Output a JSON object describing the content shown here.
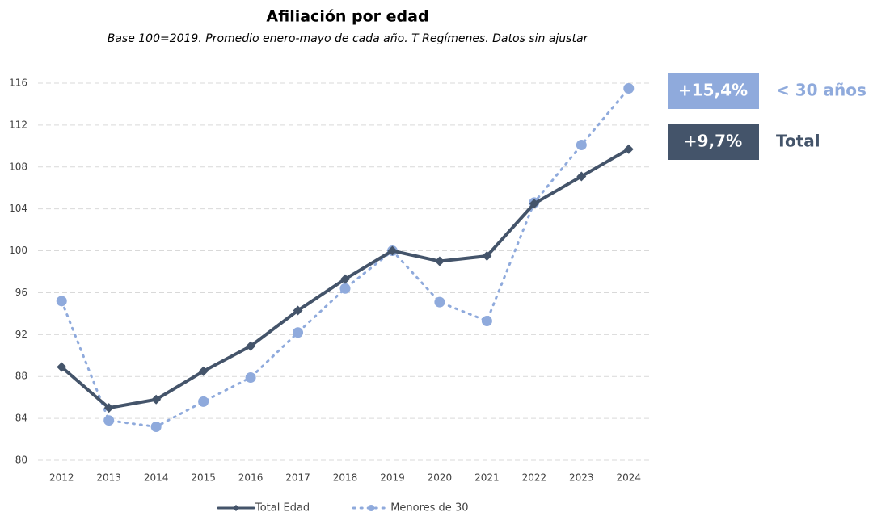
{
  "chart_data": {
    "type": "line",
    "title": "Afiliación por edad",
    "subtitle": "Base 100=2019. Promedio enero-mayo de cada año. T Regímenes. Datos sin ajustar",
    "categories": [
      "2012",
      "2013",
      "2014",
      "2015",
      "2016",
      "2017",
      "2018",
      "2019",
      "2020",
      "2021",
      "2022",
      "2023",
      "2024"
    ],
    "series": [
      {
        "name": "Total Edad",
        "color": "#44546a",
        "style": "solid",
        "marker": "diamond",
        "values": [
          88.9,
          85.0,
          85.8,
          88.5,
          90.9,
          94.3,
          97.3,
          100.0,
          99.0,
          99.5,
          104.5,
          107.1,
          109.7
        ]
      },
      {
        "name": "Menores de 30",
        "color": "#8faadc",
        "style": "dotted",
        "marker": "circle",
        "values": [
          95.2,
          83.8,
          83.2,
          85.6,
          87.9,
          92.2,
          96.4,
          100.0,
          95.1,
          93.3,
          104.6,
          110.1,
          115.5
        ]
      }
    ],
    "ylim": [
      80,
      116
    ],
    "yticks": [
      80,
      84,
      88,
      92,
      96,
      100,
      104,
      108,
      112,
      116
    ],
    "grid": true,
    "legend": "bottom",
    "annotations": [
      {
        "text": "+15,4%",
        "label": "< 30 años",
        "color": "#8faadc",
        "label_color": "#8faadc"
      },
      {
        "text": "+9,7%",
        "label": "Total",
        "color": "#44546a",
        "label_color": "#44546a"
      }
    ]
  }
}
